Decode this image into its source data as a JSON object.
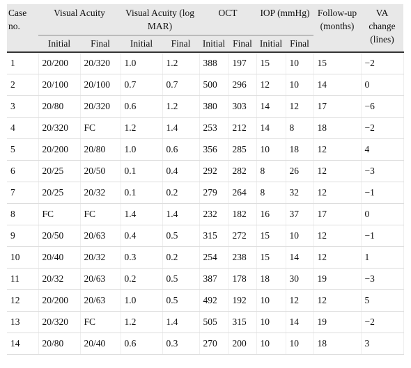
{
  "table": {
    "columns": [
      "Case no.",
      "Visual Acuity",
      "Visual Acuity (log MAR)",
      "OCT",
      "IOP (mmHg)",
      "Follow-up (months)",
      "VA change (lines)"
    ],
    "subcolumns": [
      "Initial",
      "Final",
      "Initial",
      "Final",
      "Initial",
      "Final",
      "Initial",
      "Final"
    ],
    "rows": [
      [
        "1",
        "20/200",
        "20/320",
        "1.0",
        "1.2",
        "388",
        "197",
        "15",
        "10",
        "15",
        "−2"
      ],
      [
        "2",
        "20/100",
        "20/100",
        "0.7",
        "0.7",
        "500",
        "296",
        "12",
        "10",
        "14",
        "0"
      ],
      [
        "3",
        "20/80",
        "20/320",
        "0.6",
        "1.2",
        "380",
        "303",
        "14",
        "12",
        "17",
        "−6"
      ],
      [
        "4",
        "20/320",
        "FC",
        "1.2",
        "1.4",
        "253",
        "212",
        "14",
        "8",
        "18",
        "−2"
      ],
      [
        "5",
        "20/200",
        "20/80",
        "1.0",
        "0.6",
        "356",
        "285",
        "10",
        "18",
        "12",
        "4"
      ],
      [
        "6",
        "20/25",
        "20/50",
        "0.1",
        "0.4",
        "292",
        "282",
        "8",
        "26",
        "12",
        "−3"
      ],
      [
        "7",
        "20/25",
        "20/32",
        "0.1",
        "0.2",
        "279",
        "264",
        "8",
        "32",
        "12",
        "−1"
      ],
      [
        "8",
        "FC",
        "FC",
        "1.4",
        "1.4",
        "232",
        "182",
        "16",
        "37",
        "17",
        "0"
      ],
      [
        "9",
        "20/50",
        "20/63",
        "0.4",
        "0.5",
        "315",
        "272",
        "15",
        "10",
        "12",
        "−1"
      ],
      [
        "10",
        "20/40",
        "20/32",
        "0.3",
        "0.2",
        "254",
        "238",
        "15",
        "14",
        "12",
        "1"
      ],
      [
        "11",
        "20/32",
        "20/63",
        "0.2",
        "0.5",
        "387",
        "178",
        "18",
        "30",
        "19",
        "−3"
      ],
      [
        "12",
        "20/200",
        "20/63",
        "1.0",
        "0.5",
        "492",
        "192",
        "10",
        "12",
        "12",
        "5"
      ],
      [
        "13",
        "20/320",
        "FC",
        "1.2",
        "1.4",
        "505",
        "315",
        "10",
        "14",
        "19",
        "−2"
      ],
      [
        "14",
        "20/80",
        "20/40",
        "0.6",
        "0.3",
        "270",
        "200",
        "10",
        "10",
        "18",
        "3"
      ]
    ]
  }
}
